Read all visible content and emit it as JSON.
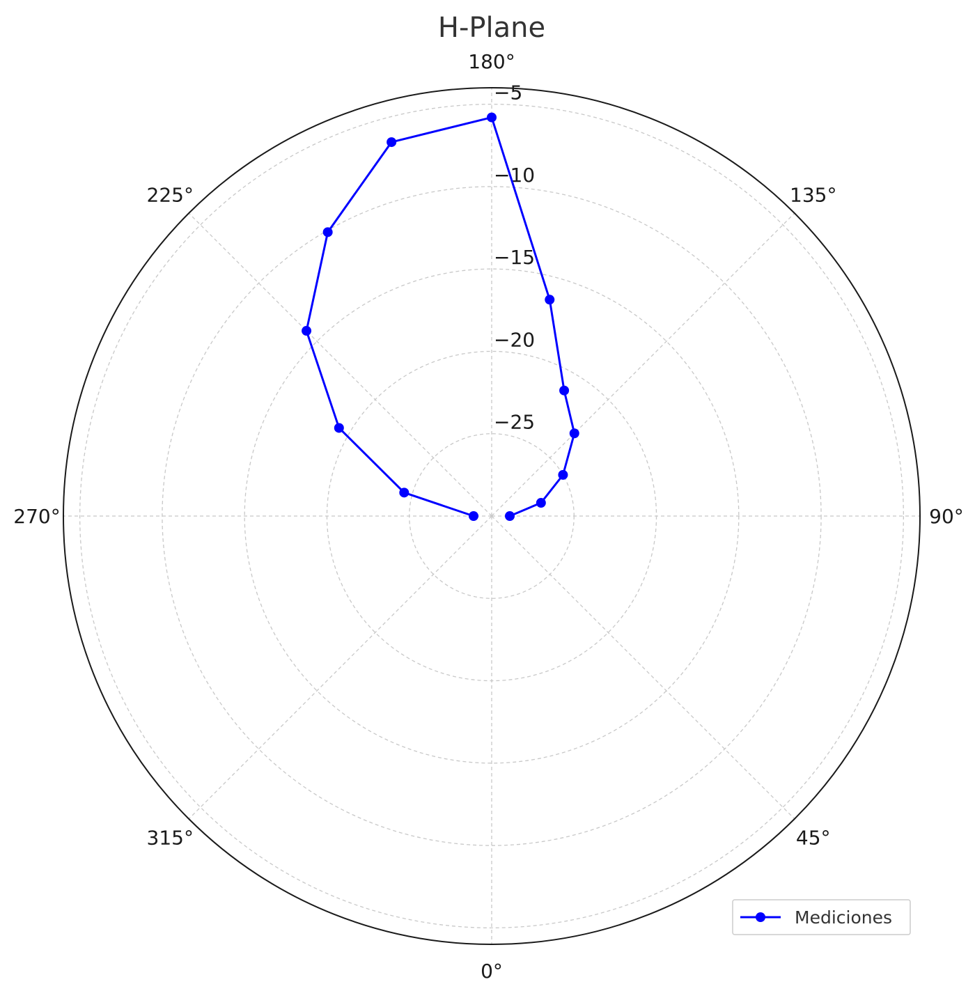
{
  "chart_data": {
    "type": "line",
    "subtype": "polar",
    "title": "H-Plane",
    "theta_zero_location": "bottom",
    "theta_direction": "counterclockwise",
    "angle_ticks": [
      0,
      45,
      90,
      135,
      180,
      225,
      270,
      315
    ],
    "angle_tick_labels": [
      "0°",
      "45°",
      "90°",
      "135°",
      "180°",
      "225°",
      "270°",
      "315°"
    ],
    "rlim": [
      -30,
      -4
    ],
    "r_ticks": [
      -25,
      -20,
      -15,
      -10,
      -5
    ],
    "r_tick_labels": [
      "−25",
      "−20",
      "−15",
      "−10",
      "−5"
    ],
    "grid": true,
    "legend": {
      "position": "bottom-right",
      "entries": [
        "Mediciones"
      ]
    },
    "series": [
      {
        "name": "Mediciones",
        "color": "#0000ff",
        "marker": "circle",
        "theta": [
          90,
          105,
          120,
          135,
          150,
          165,
          180,
          195,
          210,
          225,
          240,
          255,
          270
        ],
        "r": [
          -28.9,
          -26.9,
          -25.0,
          -22.9,
          -21.2,
          -16.4,
          -5.8,
          -6.5,
          -10.1,
          -14.1,
          -19.3,
          -24.5,
          -28.9
        ]
      }
    ]
  }
}
